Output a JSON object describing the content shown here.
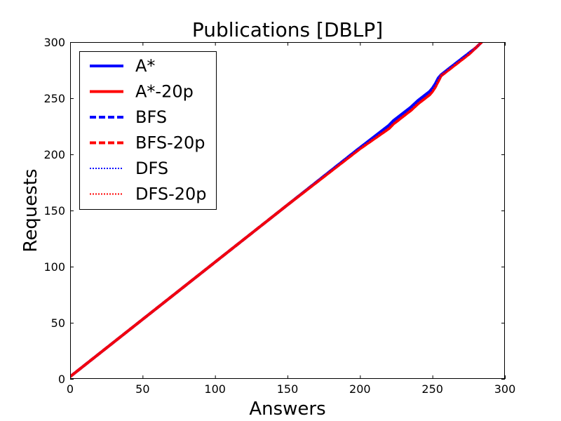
{
  "chart_data": {
    "type": "line",
    "title": "Publications [DBLP]",
    "xlabel": "Answers",
    "ylabel": "Requests",
    "xlim": [
      0,
      300
    ],
    "ylim": [
      0,
      300
    ],
    "xticks": [
      "0",
      "50",
      "100",
      "150",
      "200",
      "250",
      "300"
    ],
    "yticks": [
      "0",
      "50",
      "100",
      "150",
      "200",
      "250",
      "300"
    ],
    "grid": false,
    "legend_position": "top-left",
    "series": [
      {
        "name": "A*",
        "color": "#0000ff",
        "style": "solid",
        "x": [
          0,
          50,
          100,
          150,
          200,
          220,
          223,
          226,
          230,
          235,
          240,
          245,
          248,
          250,
          252,
          254,
          256,
          260,
          265,
          270,
          275,
          280,
          284
        ],
        "y": [
          2,
          53,
          104,
          155,
          206,
          226,
          230,
          233,
          237,
          242,
          248,
          253,
          256,
          259,
          263,
          268,
          271,
          275,
          280,
          285,
          290,
          295,
          300
        ]
      },
      {
        "name": "A*-20p",
        "color": "#ff0000",
        "style": "solid",
        "x": [
          0,
          50,
          100,
          150,
          200,
          220,
          223,
          226,
          230,
          235,
          240,
          245,
          248,
          250,
          252,
          254,
          256,
          260,
          265,
          270,
          275,
          280,
          284
        ],
        "y": [
          2,
          53,
          104,
          155,
          205,
          223,
          227,
          230,
          234,
          239,
          245,
          250,
          253,
          256,
          260,
          265,
          270,
          274,
          279,
          284,
          289,
          295,
          300
        ]
      },
      {
        "name": "BFS",
        "color": "#0000ff",
        "style": "dashed",
        "x": [
          0,
          50,
          100,
          150,
          200,
          220,
          223,
          226,
          230,
          235,
          240,
          245,
          248,
          250,
          252,
          254,
          256,
          260,
          265,
          270,
          275,
          280,
          284
        ],
        "y": [
          2,
          53,
          104,
          155,
          206,
          225,
          229,
          232,
          236,
          241,
          247,
          252,
          255,
          258,
          262,
          267,
          270,
          275,
          280,
          285,
          290,
          295,
          300
        ]
      },
      {
        "name": "BFS-20p",
        "color": "#ff0000",
        "style": "dashed",
        "x": [
          0,
          50,
          100,
          150,
          200,
          220,
          223,
          226,
          230,
          235,
          240,
          245,
          248,
          250,
          252,
          254,
          256,
          260,
          265,
          270,
          275,
          280,
          284
        ],
        "y": [
          2,
          53,
          104,
          155,
          205,
          223,
          227,
          230,
          234,
          239,
          245,
          250,
          253,
          256,
          260,
          265,
          270,
          274,
          279,
          284,
          289,
          295,
          300
        ]
      },
      {
        "name": "DFS",
        "color": "#0000ff",
        "style": "dotted",
        "x": [
          0,
          50,
          100,
          150,
          200,
          220,
          223,
          226,
          230,
          235,
          240,
          245,
          248,
          250,
          252,
          254,
          256,
          260,
          265,
          270,
          275,
          280,
          284
        ],
        "y": [
          2,
          53,
          104,
          155,
          206,
          225,
          229,
          232,
          236,
          241,
          247,
          252,
          255,
          258,
          262,
          267,
          270,
          275,
          280,
          285,
          290,
          295,
          300
        ]
      },
      {
        "name": "DFS-20p",
        "color": "#ff0000",
        "style": "dotted",
        "x": [
          0,
          50,
          100,
          150,
          200,
          220,
          223,
          226,
          230,
          235,
          240,
          245,
          248,
          250,
          252,
          254,
          256,
          260,
          265,
          270,
          275,
          280,
          284
        ],
        "y": [
          2,
          53,
          104,
          155,
          205,
          223,
          227,
          230,
          234,
          239,
          245,
          250,
          253,
          256,
          260,
          265,
          270,
          274,
          279,
          284,
          289,
          295,
          300
        ]
      }
    ]
  }
}
